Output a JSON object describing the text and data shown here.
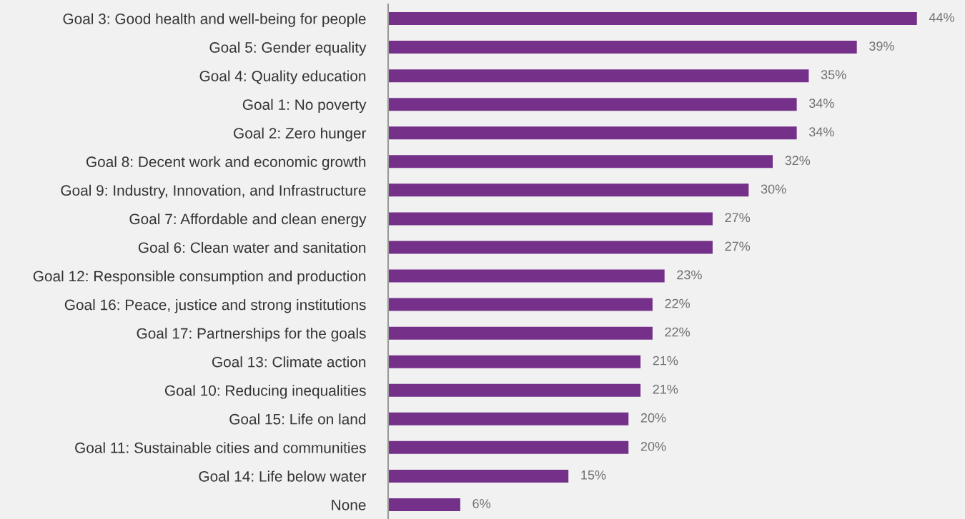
{
  "chart_data": {
    "type": "bar",
    "orientation": "horizontal",
    "categories": [
      "Goal 3: Good health and well-being for people",
      "Goal 5: Gender equality",
      "Goal 4: Quality education",
      "Goal 1: No poverty",
      "Goal 2: Zero hunger",
      "Goal 8: Decent work and economic growth",
      "Goal 9: Industry, Innovation, and Infrastructure",
      "Goal 7: Affordable and clean energy",
      "Goal 6: Clean water and sanitation",
      "Goal 12: Responsible consumption and production",
      "Goal 16: Peace, justice and strong institutions",
      "Goal 17: Partnerships for the goals",
      "Goal 13: Climate action",
      "Goal 10: Reducing inequalities",
      "Goal 15: Life on land",
      "Goal 11: Sustainable cities and communities",
      "Goal 14: Life below water",
      "None"
    ],
    "values": [
      44,
      39,
      35,
      34,
      34,
      32,
      30,
      27,
      27,
      23,
      22,
      22,
      21,
      21,
      20,
      20,
      15,
      6
    ],
    "value_labels": [
      "44%",
      "39%",
      "35%",
      "34%",
      "34%",
      "32%",
      "30%",
      "27%",
      "27%",
      "23%",
      "22%",
      "22%",
      "21%",
      "21%",
      "20%",
      "20%",
      "15%",
      "6%"
    ],
    "color": "#75318a",
    "xlim": [
      0,
      48
    ],
    "tick_labels": "y",
    "grid": false,
    "legend": false
  }
}
